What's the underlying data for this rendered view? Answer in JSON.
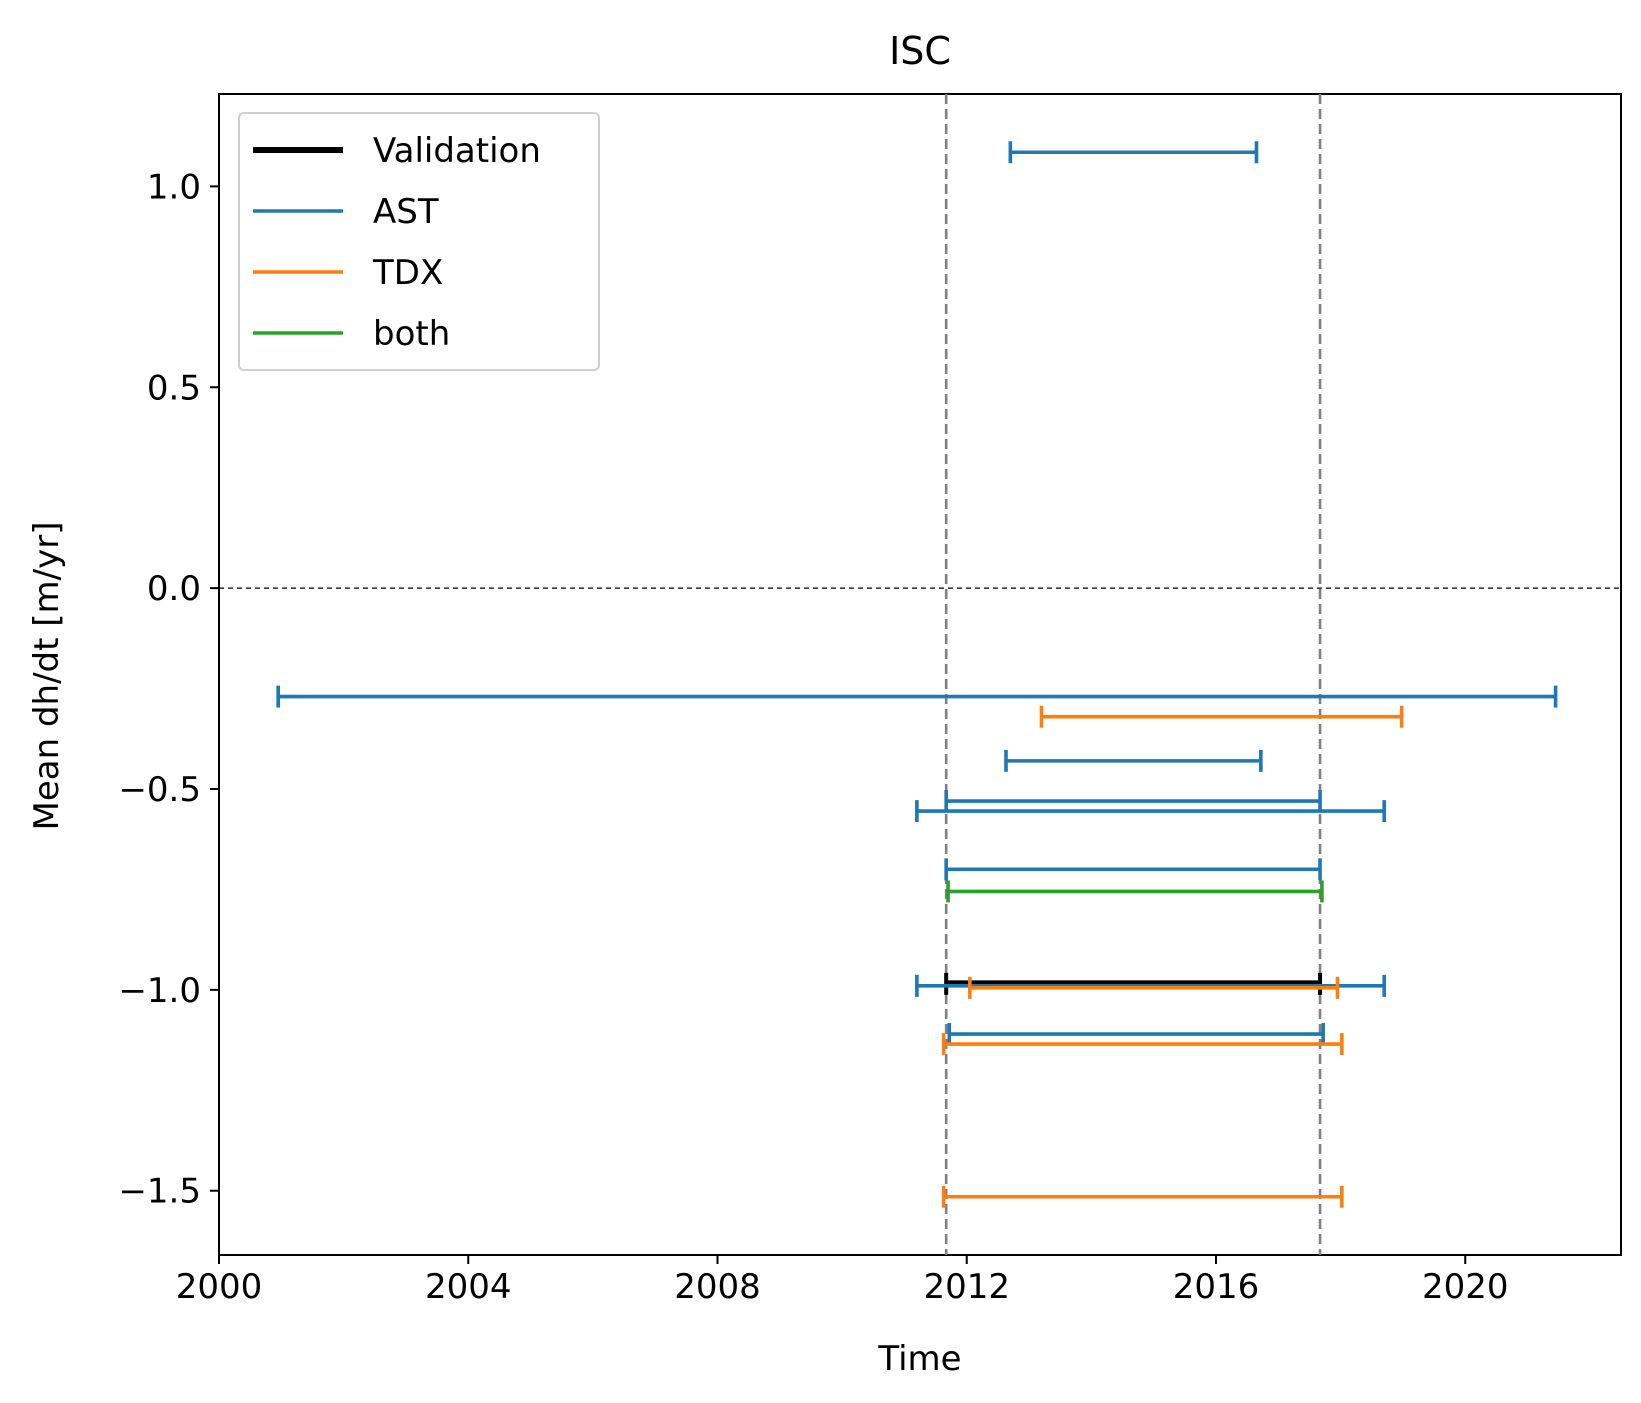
{
  "chart_data": {
    "type": "line",
    "title": "ISC",
    "xlabel": "Time",
    "ylabel": "Mean dh/dt [m/yr]",
    "xlim": [
      2000,
      2022.5
    ],
    "ylim": [
      -1.66,
      1.23
    ],
    "x_ticks": [
      2000,
      2004,
      2008,
      2012,
      2016,
      2020
    ],
    "x_tick_labels": [
      "2000",
      "2004",
      "2008",
      "2012",
      "2016",
      "2020"
    ],
    "y_ticks": [
      1.0,
      0.5,
      0.0,
      -0.5,
      -1.0,
      -1.5
    ],
    "y_tick_labels": [
      "1.0",
      "0.5",
      "0.0",
      "−0.5",
      "−1.0",
      "−1.5"
    ],
    "grid": false,
    "legend_position": "top-left",
    "reference_lines": {
      "horizontal_zero": 0.0,
      "vertical_dashed": [
        2011.67,
        2017.67
      ]
    },
    "series": [
      {
        "name": "Validation",
        "color": "#000000",
        "intervals": [
          {
            "start": 2011.67,
            "end": 2017.67,
            "value": -0.985
          }
        ]
      },
      {
        "name": "AST",
        "color": "#1f77b4",
        "intervals": [
          {
            "start": 2012.7,
            "end": 2016.65,
            "value": 1.085
          },
          {
            "start": 2000.95,
            "end": 2021.45,
            "value": -0.27
          },
          {
            "start": 2012.63,
            "end": 2016.72,
            "value": -0.43
          },
          {
            "start": 2011.67,
            "end": 2017.67,
            "value": -0.53
          },
          {
            "start": 2011.2,
            "end": 2018.7,
            "value": -0.555
          },
          {
            "start": 2011.67,
            "end": 2017.67,
            "value": -0.7
          },
          {
            "start": 2011.2,
            "end": 2018.7,
            "value": -0.99
          },
          {
            "start": 2011.72,
            "end": 2017.72,
            "value": -1.11
          }
        ]
      },
      {
        "name": "TDX",
        "color": "#ff7f0e",
        "intervals": [
          {
            "start": 2013.2,
            "end": 2018.98,
            "value": -0.32
          },
          {
            "start": 2012.05,
            "end": 2017.95,
            "value": -0.995
          },
          {
            "start": 2011.63,
            "end": 2018.02,
            "value": -1.135
          },
          {
            "start": 2011.63,
            "end": 2018.02,
            "value": -1.515
          }
        ]
      },
      {
        "name": "both",
        "color": "#2ca02c",
        "intervals": [
          {
            "start": 2011.7,
            "end": 2017.7,
            "value": -0.755
          }
        ]
      }
    ]
  }
}
